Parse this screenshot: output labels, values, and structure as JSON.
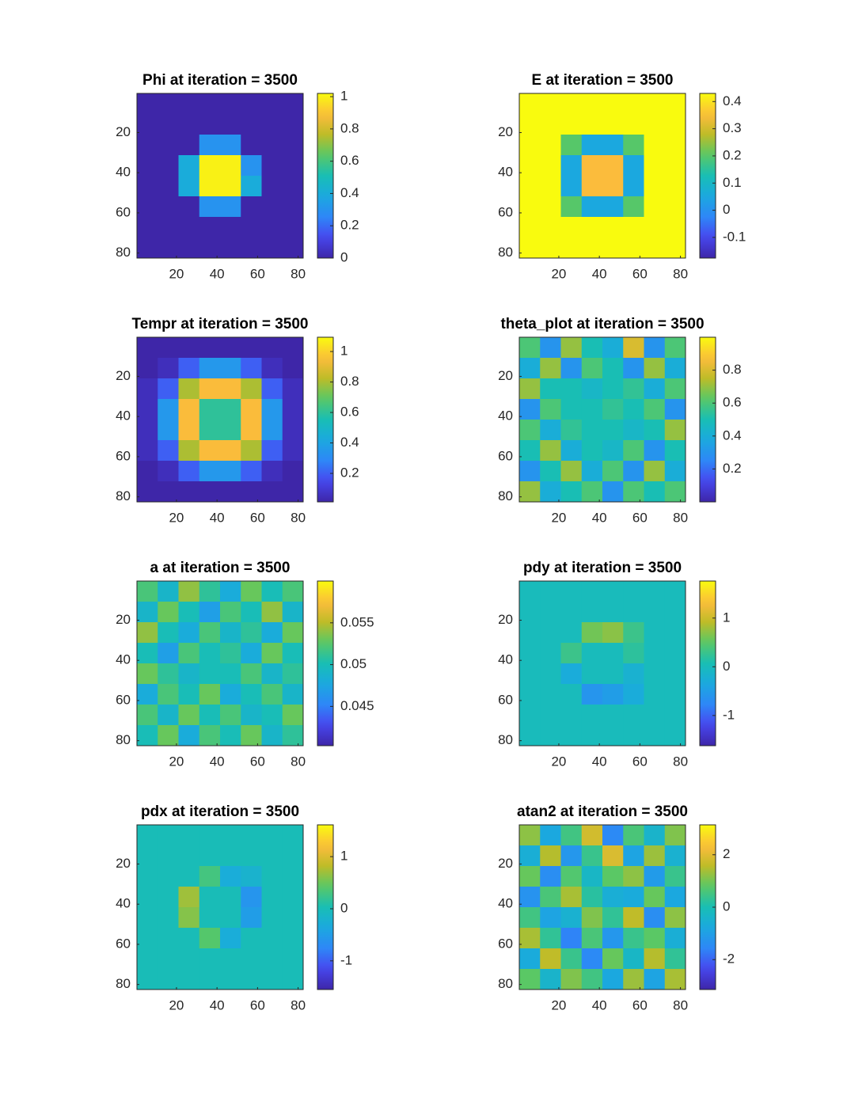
{
  "chart_data": [
    {
      "type": "heatmap",
      "title": "Phi at iteration = 3500",
      "xlim": [
        0.5,
        82.5
      ],
      "ylim": [
        0.5,
        82.5
      ],
      "xticks": [
        20,
        40,
        60,
        80
      ],
      "yticks": [
        20,
        40,
        60,
        80
      ],
      "clim": [
        0,
        1.02
      ],
      "cticks": [
        0,
        0.2,
        0.4,
        0.6,
        0.8,
        1
      ],
      "values": [
        [
          0,
          0,
          0,
          0,
          0,
          0,
          0,
          0
        ],
        [
          0,
          0,
          0,
          0,
          0,
          0,
          0,
          0
        ],
        [
          0,
          0,
          0,
          0.3,
          0.3,
          0,
          0,
          0
        ],
        [
          0,
          0,
          0.4,
          1,
          1,
          0.3,
          0,
          0
        ],
        [
          0,
          0,
          0.4,
          1,
          1,
          0.4,
          0,
          0
        ],
        [
          0,
          0,
          0,
          0.3,
          0.3,
          0,
          0,
          0
        ],
        [
          0,
          0,
          0,
          0,
          0,
          0,
          0,
          0
        ],
        [
          0,
          0,
          0,
          0,
          0,
          0,
          0,
          0
        ]
      ]
    },
    {
      "type": "heatmap",
      "title": "E at iteration = 3500",
      "xlim": [
        0.5,
        82.5
      ],
      "ylim": [
        0.5,
        82.5
      ],
      "xticks": [
        20,
        40,
        60,
        80
      ],
      "yticks": [
        20,
        40,
        60,
        80
      ],
      "clim": [
        -0.176,
        0.43
      ],
      "cticks": [
        -0.1,
        0,
        0.1,
        0.2,
        0.3,
        0.4
      ],
      "values": [
        [
          0.43,
          0.43,
          0.43,
          0.43,
          0.43,
          0.43,
          0.43,
          0.43
        ],
        [
          0.43,
          0.43,
          0.43,
          0.43,
          0.43,
          0.43,
          0.43,
          0.43
        ],
        [
          0.43,
          0.43,
          0.2,
          0.05,
          0.05,
          0.2,
          0.43,
          0.43
        ],
        [
          0.43,
          0.43,
          0.05,
          0.35,
          0.35,
          0.05,
          0.43,
          0.43
        ],
        [
          0.43,
          0.43,
          0.05,
          0.35,
          0.35,
          0.05,
          0.43,
          0.43
        ],
        [
          0.43,
          0.43,
          0.2,
          0.05,
          0.05,
          0.2,
          0.43,
          0.43
        ],
        [
          0.43,
          0.43,
          0.43,
          0.43,
          0.43,
          0.43,
          0.43,
          0.43
        ],
        [
          0.43,
          0.43,
          0.43,
          0.43,
          0.43,
          0.43,
          0.43,
          0.43
        ]
      ]
    },
    {
      "type": "heatmap",
      "title": "Tempr at iteration = 3500",
      "xlim": [
        0.5,
        82.5
      ],
      "ylim": [
        0.5,
        82.5
      ],
      "xticks": [
        20,
        40,
        60,
        80
      ],
      "yticks": [
        20,
        40,
        60,
        80
      ],
      "clim": [
        0.013,
        1.094
      ],
      "cticks": [
        0.2,
        0.4,
        0.6,
        0.8,
        1
      ],
      "values": [
        [
          0.013,
          0.013,
          0.013,
          0.013,
          0.013,
          0.013,
          0.013,
          0.013
        ],
        [
          0.013,
          0.05,
          0.2,
          0.35,
          0.35,
          0.2,
          0.05,
          0.013
        ],
        [
          0.05,
          0.2,
          0.8,
          0.95,
          0.95,
          0.8,
          0.2,
          0.05
        ],
        [
          0.05,
          0.35,
          0.95,
          0.6,
          0.6,
          0.95,
          0.35,
          0.05
        ],
        [
          0.05,
          0.35,
          0.95,
          0.6,
          0.6,
          0.95,
          0.35,
          0.05
        ],
        [
          0.05,
          0.2,
          0.8,
          0.95,
          0.95,
          0.8,
          0.2,
          0.05
        ],
        [
          0.013,
          0.05,
          0.2,
          0.35,
          0.35,
          0.2,
          0.05,
          0.013
        ],
        [
          0.013,
          0.013,
          0.013,
          0.013,
          0.013,
          0.013,
          0.013,
          0.013
        ]
      ]
    },
    {
      "type": "heatmap",
      "title": "theta_plot at iteration = 3500",
      "xlim": [
        0.5,
        82.5
      ],
      "ylim": [
        0.5,
        82.5
      ],
      "xticks": [
        20,
        40,
        60,
        80
      ],
      "yticks": [
        20,
        40,
        60,
        80
      ],
      "clim": [
        0,
        1
      ],
      "cticks": [
        0.2,
        0.4,
        0.6,
        0.8
      ],
      "values": [
        [
          0.6,
          0.3,
          0.7,
          0.5,
          0.4,
          0.8,
          0.3,
          0.6
        ],
        [
          0.4,
          0.7,
          0.3,
          0.6,
          0.5,
          0.3,
          0.7,
          0.4
        ],
        [
          0.7,
          0.5,
          0.5,
          0.45,
          0.5,
          0.55,
          0.4,
          0.6
        ],
        [
          0.3,
          0.6,
          0.5,
          0.5,
          0.55,
          0.5,
          0.6,
          0.3
        ],
        [
          0.6,
          0.4,
          0.55,
          0.5,
          0.5,
          0.45,
          0.5,
          0.7
        ],
        [
          0.5,
          0.7,
          0.4,
          0.5,
          0.45,
          0.6,
          0.3,
          0.5
        ],
        [
          0.3,
          0.5,
          0.7,
          0.4,
          0.6,
          0.3,
          0.7,
          0.4
        ],
        [
          0.7,
          0.4,
          0.5,
          0.6,
          0.3,
          0.6,
          0.5,
          0.6
        ]
      ]
    },
    {
      "type": "heatmap",
      "title": "a at iteration = 3500",
      "xlim": [
        0.5,
        82.5
      ],
      "ylim": [
        0.5,
        82.5
      ],
      "xticks": [
        20,
        40,
        60,
        80
      ],
      "yticks": [
        20,
        40,
        60,
        80
      ],
      "clim": [
        0.0403,
        0.06
      ],
      "cticks": [
        0.045,
        0.05,
        0.055
      ],
      "values": [
        [
          0.052,
          0.049,
          0.054,
          0.051,
          0.048,
          0.053,
          0.05,
          0.052
        ],
        [
          0.049,
          0.053,
          0.05,
          0.047,
          0.052,
          0.05,
          0.054,
          0.049
        ],
        [
          0.054,
          0.05,
          0.048,
          0.052,
          0.049,
          0.051,
          0.048,
          0.053
        ],
        [
          0.05,
          0.047,
          0.052,
          0.05,
          0.051,
          0.048,
          0.053,
          0.05
        ],
        [
          0.053,
          0.051,
          0.049,
          0.05,
          0.05,
          0.052,
          0.049,
          0.051
        ],
        [
          0.048,
          0.052,
          0.05,
          0.053,
          0.048,
          0.05,
          0.052,
          0.049
        ],
        [
          0.052,
          0.049,
          0.053,
          0.05,
          0.052,
          0.049,
          0.05,
          0.053
        ],
        [
          0.05,
          0.053,
          0.048,
          0.052,
          0.05,
          0.053,
          0.049,
          0.051
        ]
      ]
    },
    {
      "type": "heatmap",
      "title": "pdy at iteration = 3500",
      "xlim": [
        0.5,
        82.5
      ],
      "ylim": [
        0.5,
        82.5
      ],
      "xticks": [
        20,
        40,
        60,
        80
      ],
      "yticks": [
        20,
        40,
        60,
        80
      ],
      "clim": [
        -1.62,
        1.76
      ],
      "cticks": [
        -1,
        0,
        1
      ],
      "values": [
        [
          0,
          0,
          0,
          0,
          0,
          0,
          0,
          0
        ],
        [
          0,
          0,
          0,
          0,
          0,
          0,
          0,
          0
        ],
        [
          0,
          0,
          0,
          0.6,
          0.7,
          0.3,
          0,
          0
        ],
        [
          0,
          0,
          0.3,
          0,
          0,
          0.2,
          0,
          0
        ],
        [
          0,
          0,
          -0.3,
          0,
          0,
          -0.2,
          0,
          0
        ],
        [
          0,
          0,
          0,
          -0.6,
          -0.5,
          -0.3,
          0,
          0
        ],
        [
          0,
          0,
          0,
          0,
          0,
          0,
          0,
          0
        ],
        [
          0,
          0,
          0,
          0,
          0,
          0,
          0,
          0
        ]
      ]
    },
    {
      "type": "heatmap",
      "title": "pdx at iteration = 3500",
      "xlim": [
        0.5,
        82.5
      ],
      "ylim": [
        0.5,
        82.5
      ],
      "xticks": [
        20,
        40,
        60,
        80
      ],
      "yticks": [
        20,
        40,
        60,
        80
      ],
      "clim": [
        -1.55,
        1.61
      ],
      "cticks": [
        -1,
        0,
        1
      ],
      "values": [
        [
          0,
          0,
          0,
          0,
          0,
          0,
          0,
          0
        ],
        [
          0,
          0,
          0,
          0,
          0,
          0,
          0,
          0
        ],
        [
          0,
          0,
          0,
          0.3,
          -0.3,
          -0.2,
          0,
          0
        ],
        [
          0,
          0,
          0.7,
          0,
          0,
          -0.6,
          0,
          0
        ],
        [
          0,
          0,
          0.6,
          0,
          0,
          -0.5,
          0,
          0
        ],
        [
          0,
          0,
          0,
          0.4,
          -0.3,
          0,
          0,
          0
        ],
        [
          0,
          0,
          0,
          0,
          0,
          0,
          0,
          0
        ],
        [
          0,
          0,
          0,
          0,
          0,
          0,
          0,
          0
        ]
      ]
    },
    {
      "type": "heatmap",
      "title": "atan2 at iteration = 3500",
      "xlim": [
        0.5,
        82.5
      ],
      "ylim": [
        0.5,
        82.5
      ],
      "xticks": [
        20,
        40,
        60,
        80
      ],
      "yticks": [
        20,
        40,
        60,
        80
      ],
      "clim": [
        -3.14,
        3.14
      ],
      "cticks": [
        -2,
        0,
        2
      ],
      "values": [
        [
          1.2,
          -0.8,
          0.5,
          1.8,
          -1.5,
          0.6,
          -0.4,
          1.1
        ],
        [
          -0.6,
          1.5,
          -1.2,
          0.4,
          1.9,
          -0.9,
          1.3,
          -0.5
        ],
        [
          0.9,
          -1.4,
          0.7,
          -0.3,
          0.8,
          1.2,
          -1.1,
          0.4
        ],
        [
          -1.3,
          0.6,
          1.4,
          0.2,
          -0.6,
          -0.7,
          0.9,
          -0.8
        ],
        [
          0.5,
          -0.9,
          -0.5,
          1.1,
          0.3,
          1.6,
          -1.4,
          1.2
        ],
        [
          1.4,
          0.3,
          -1.6,
          0.6,
          -1.2,
          0.4,
          0.8,
          -0.6
        ],
        [
          -0.7,
          1.6,
          0.4,
          -1.5,
          0.9,
          -0.3,
          1.5,
          0.3
        ],
        [
          0.8,
          -0.4,
          1.1,
          0.5,
          -0.8,
          1.3,
          -0.9,
          1.4
        ]
      ]
    }
  ]
}
